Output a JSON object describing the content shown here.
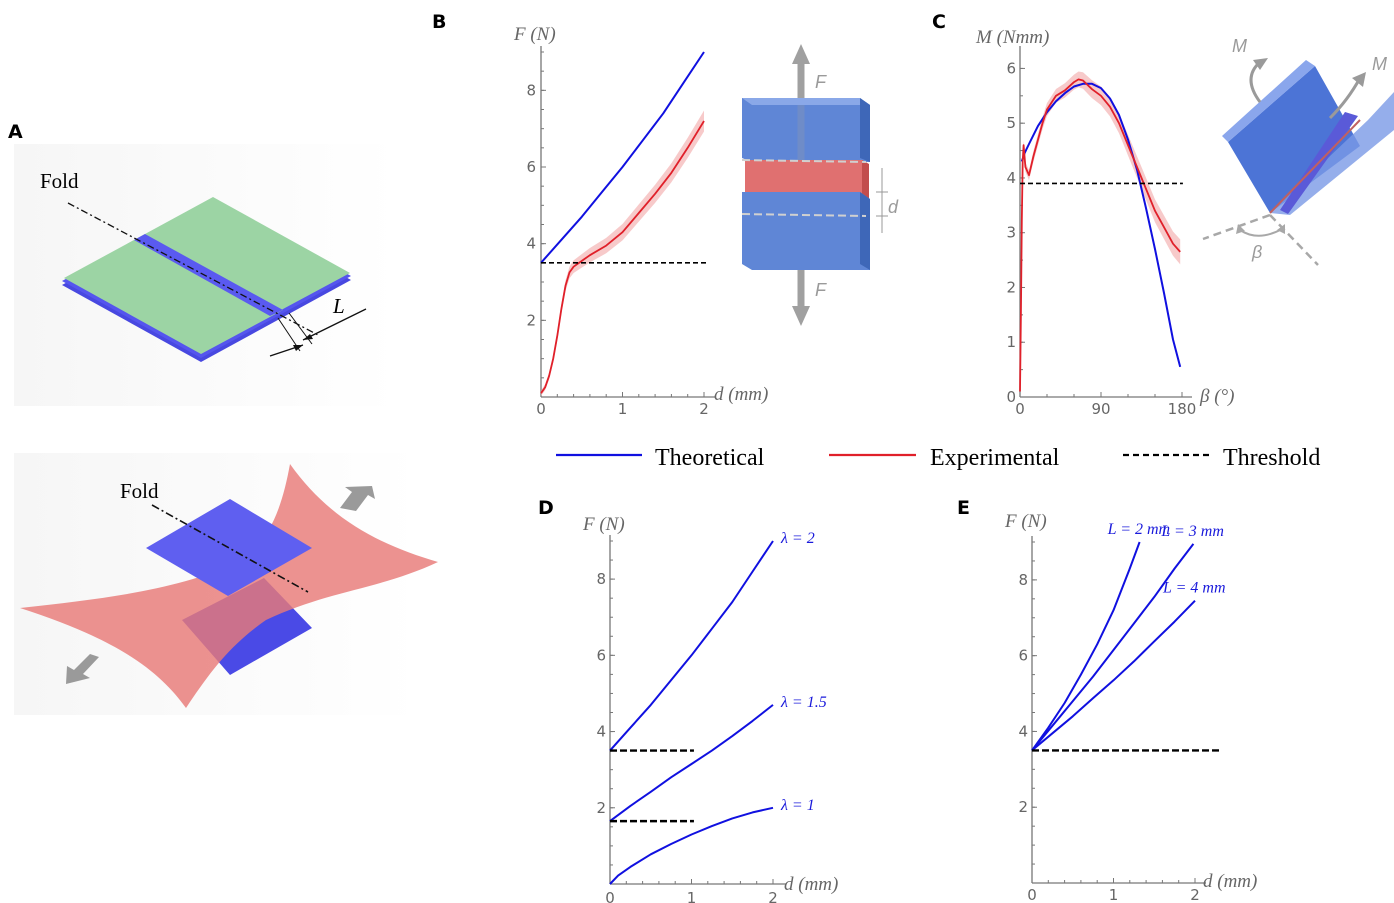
{
  "panels": {
    "A": "A",
    "B": "B",
    "C": "C",
    "D": "D",
    "E": "E"
  },
  "illustration": {
    "fold_label": "Fold",
    "fold_label_2": "Fold",
    "L_label": "L",
    "F_top": "F",
    "F_bottom": "F",
    "d_label": "d",
    "M_left": "M",
    "M_right": "M",
    "beta_label": "β"
  },
  "legend": {
    "theoretical": "Theoretical",
    "experimental": "Experimental",
    "threshold": "Threshold"
  },
  "colors": {
    "theoretical": "#1010e0",
    "experimental": "#e0202a",
    "threshold": "#000000",
    "experimental_band": "#f4b4b4"
  },
  "chart_data": [
    {
      "id": "B",
      "type": "line",
      "xlabel": "d (mm)",
      "ylabel": "F (N)",
      "xlim": [
        0,
        2
      ],
      "ylim": [
        0,
        9
      ],
      "xticks": [
        "0",
        "1",
        "2"
      ],
      "yticks": [
        "2",
        "4",
        "6",
        "8"
      ],
      "series": [
        {
          "name": "Theoretical",
          "x": [
            0,
            0.25,
            0.5,
            0.75,
            1.0,
            1.25,
            1.5,
            1.75,
            2.0
          ],
          "y": [
            3.5,
            4.1,
            4.7,
            5.35,
            6.0,
            6.7,
            7.4,
            8.2,
            9.0
          ]
        },
        {
          "name": "Experimental",
          "x": [
            0,
            0.05,
            0.1,
            0.15,
            0.2,
            0.25,
            0.3,
            0.35,
            0.4,
            0.5,
            0.6,
            0.8,
            1.0,
            1.2,
            1.4,
            1.6,
            1.8,
            2.0
          ],
          "y": [
            0.1,
            0.25,
            0.55,
            1.0,
            1.6,
            2.3,
            2.9,
            3.25,
            3.4,
            3.55,
            3.7,
            3.95,
            4.3,
            4.8,
            5.3,
            5.85,
            6.5,
            7.2
          ]
        },
        {
          "name": "Threshold",
          "x": [
            0,
            2.03
          ],
          "y": [
            3.5,
            3.5
          ]
        }
      ]
    },
    {
      "id": "C",
      "type": "line",
      "xlabel": "β (°)",
      "ylabel": "M (Nmm)",
      "xlim": [
        0,
        180
      ],
      "ylim": [
        0,
        6.3
      ],
      "xticks": [
        "0",
        "90",
        "180"
      ],
      "yticks": [
        "0",
        "1",
        "2",
        "3",
        "4",
        "5",
        "6"
      ],
      "series": [
        {
          "name": "Theoretical",
          "x": [
            2,
            5,
            10,
            20,
            30,
            40,
            50,
            60,
            70,
            80,
            90,
            100,
            110,
            120,
            130,
            140,
            150,
            160,
            170,
            178
          ],
          "y": [
            4.3,
            4.45,
            4.62,
            4.95,
            5.2,
            5.4,
            5.55,
            5.67,
            5.72,
            5.72,
            5.64,
            5.45,
            5.15,
            4.7,
            4.15,
            3.45,
            2.7,
            1.9,
            1.05,
            0.55
          ]
        },
        {
          "name": "Experimental",
          "x": [
            0,
            1,
            2,
            3,
            4,
            6,
            10,
            15,
            20,
            25,
            30,
            40,
            50,
            60,
            65,
            70,
            75,
            80,
            90,
            100,
            110,
            120,
            130,
            140,
            150,
            160,
            170,
            178
          ],
          "y": [
            0.1,
            1.5,
            3.2,
            4.3,
            4.6,
            4.2,
            4.05,
            4.4,
            4.7,
            5.0,
            5.25,
            5.5,
            5.6,
            5.75,
            5.8,
            5.78,
            5.7,
            5.62,
            5.5,
            5.3,
            5.0,
            4.6,
            4.2,
            3.8,
            3.4,
            3.1,
            2.8,
            2.65
          ]
        },
        {
          "name": "Threshold",
          "x": [
            0,
            181
          ],
          "y": [
            3.9,
            3.9
          ]
        }
      ]
    },
    {
      "id": "D",
      "type": "line",
      "xlabel": "d (mm)",
      "ylabel": "F (N)",
      "xlim": [
        0,
        2
      ],
      "ylim": [
        0,
        9
      ],
      "xticks": [
        "0",
        "1",
        "2"
      ],
      "yticks": [
        "2",
        "4",
        "6",
        "8"
      ],
      "series": [
        {
          "name": "λ = 2",
          "x": [
            0,
            0.25,
            0.5,
            0.75,
            1.0,
            1.25,
            1.5,
            1.75,
            2.0
          ],
          "y": [
            3.5,
            4.1,
            4.7,
            5.35,
            6.0,
            6.7,
            7.4,
            8.2,
            9.0
          ]
        },
        {
          "name": "λ = 1.5",
          "x": [
            0,
            0.25,
            0.5,
            0.75,
            1.0,
            1.25,
            1.5,
            1.75,
            2.0
          ],
          "y": [
            1.65,
            2.05,
            2.42,
            2.8,
            3.15,
            3.5,
            3.88,
            4.28,
            4.7
          ]
        },
        {
          "name": "λ = 1",
          "x": [
            0,
            0.1,
            0.25,
            0.5,
            0.75,
            1.0,
            1.25,
            1.5,
            1.75,
            2.0
          ],
          "y": [
            0.0,
            0.22,
            0.45,
            0.78,
            1.05,
            1.3,
            1.52,
            1.72,
            1.88,
            2.0
          ]
        }
      ],
      "thresholds": [
        3.5,
        1.65
      ],
      "threshold_x_end": 1.03
    },
    {
      "id": "E",
      "type": "line",
      "xlabel": "d (mm)",
      "ylabel": "F (N)",
      "xlim": [
        0,
        2
      ],
      "ylim": [
        0,
        9
      ],
      "xticks": [
        "0",
        "1",
        "2"
      ],
      "yticks": [
        "2",
        "4",
        "6",
        "8"
      ],
      "series": [
        {
          "name": "L = 2 mm",
          "x": [
            0,
            0.2,
            0.4,
            0.6,
            0.8,
            1.0,
            1.2,
            1.32
          ],
          "y": [
            3.5,
            4.1,
            4.75,
            5.5,
            6.3,
            7.2,
            8.3,
            9.0
          ]
        },
        {
          "name": "L = 3 mm",
          "x": [
            0,
            0.25,
            0.5,
            0.75,
            1.0,
            1.25,
            1.5,
            1.75,
            1.98
          ],
          "y": [
            3.5,
            4.15,
            4.8,
            5.45,
            6.15,
            6.85,
            7.55,
            8.3,
            8.95
          ]
        },
        {
          "name": "L = 4 mm",
          "x": [
            0,
            0.25,
            0.5,
            0.75,
            1.0,
            1.25,
            1.5,
            1.75,
            2.0
          ],
          "y": [
            3.5,
            3.95,
            4.4,
            4.88,
            5.35,
            5.85,
            6.38,
            6.9,
            7.45
          ]
        }
      ],
      "thresholds": [
        3.5
      ],
      "threshold_x_end": 2.3
    }
  ]
}
